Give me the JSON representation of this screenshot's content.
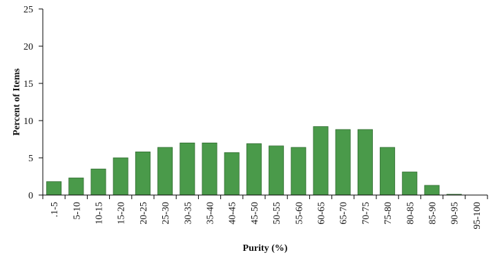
{
  "chart_data": {
    "type": "bar",
    "title": "",
    "xlabel": "Purity (%)",
    "ylabel": "Percent of Items",
    "ylim": [
      0,
      25
    ],
    "yticks": [
      0,
      5,
      10,
      15,
      20,
      25
    ],
    "grid": false,
    "bar_color": "#4a9a4a",
    "bar_edge_color": "#2f6b2f",
    "categories": [
      ".1-5",
      "5-10",
      "10-15",
      "15-20",
      "20-25",
      "25-30",
      "30-35",
      "35-40",
      "40-45",
      "45-50",
      "50-55",
      "55-60",
      "60-65",
      "65-70",
      "70-75",
      "75-80",
      "80-85",
      "85-90",
      "90-95",
      "95-100"
    ],
    "values": [
      1.8,
      2.3,
      3.5,
      5.0,
      5.8,
      6.4,
      7.0,
      7.0,
      5.7,
      6.9,
      6.6,
      6.4,
      9.2,
      8.8,
      8.8,
      6.4,
      3.1,
      1.3,
      0.1,
      0.0
    ]
  }
}
